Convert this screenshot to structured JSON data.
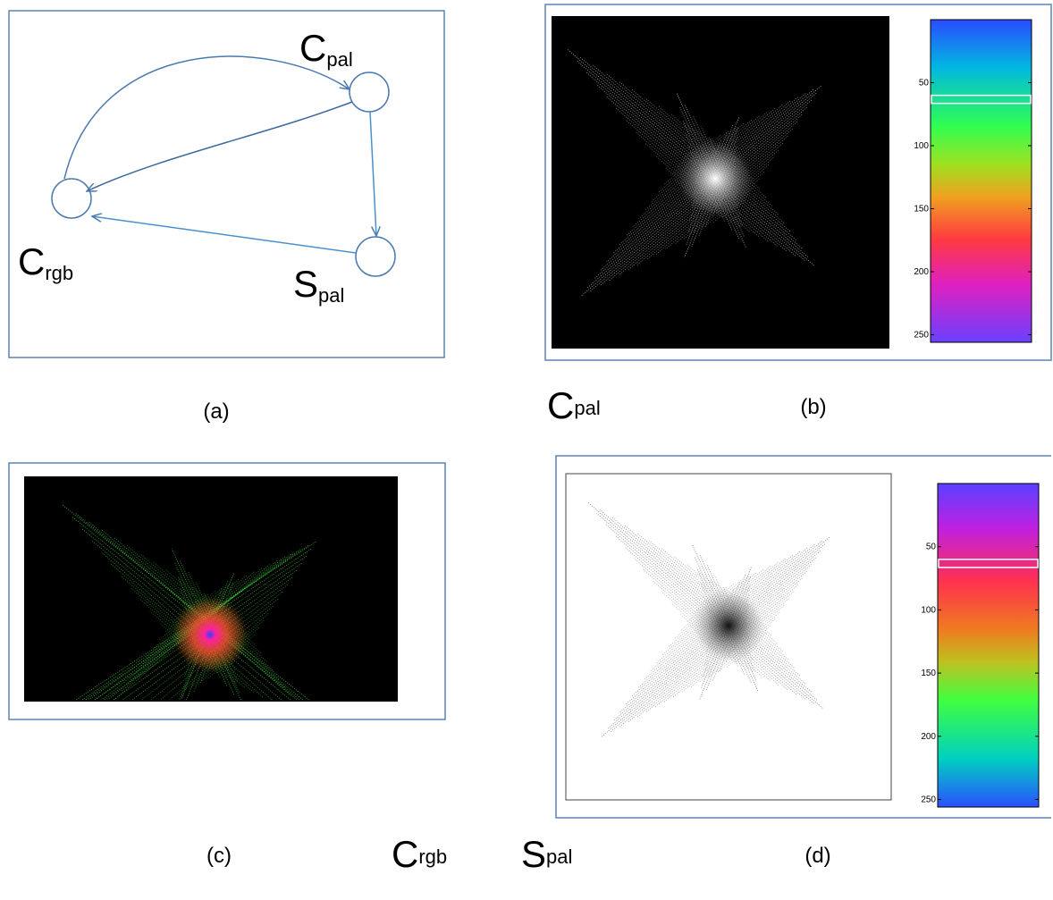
{
  "panel_a": {
    "nodes": [
      {
        "base": "C",
        "sub": "pal"
      },
      {
        "base": "C",
        "sub": "rgb"
      },
      {
        "base": "S",
        "sub": "pal"
      }
    ],
    "caption": "(a)"
  },
  "panel_b": {
    "label": {
      "base": "C",
      "sub": "pal"
    },
    "caption": "(b)",
    "colorbar": {
      "ylim": [
        0,
        256
      ],
      "yticks": [
        50,
        100,
        150,
        200,
        250
      ]
    }
  },
  "panel_c": {
    "caption": "(c)"
  },
  "bottom_labels": [
    {
      "base": "C",
      "sub": "rgb"
    },
    {
      "base": "S",
      "sub": "pal"
    }
  ],
  "panel_d": {
    "caption": "(d)",
    "colorbar": {
      "ylim": [
        0,
        256
      ],
      "yticks": [
        50,
        100,
        150,
        200,
        250
      ]
    }
  }
}
